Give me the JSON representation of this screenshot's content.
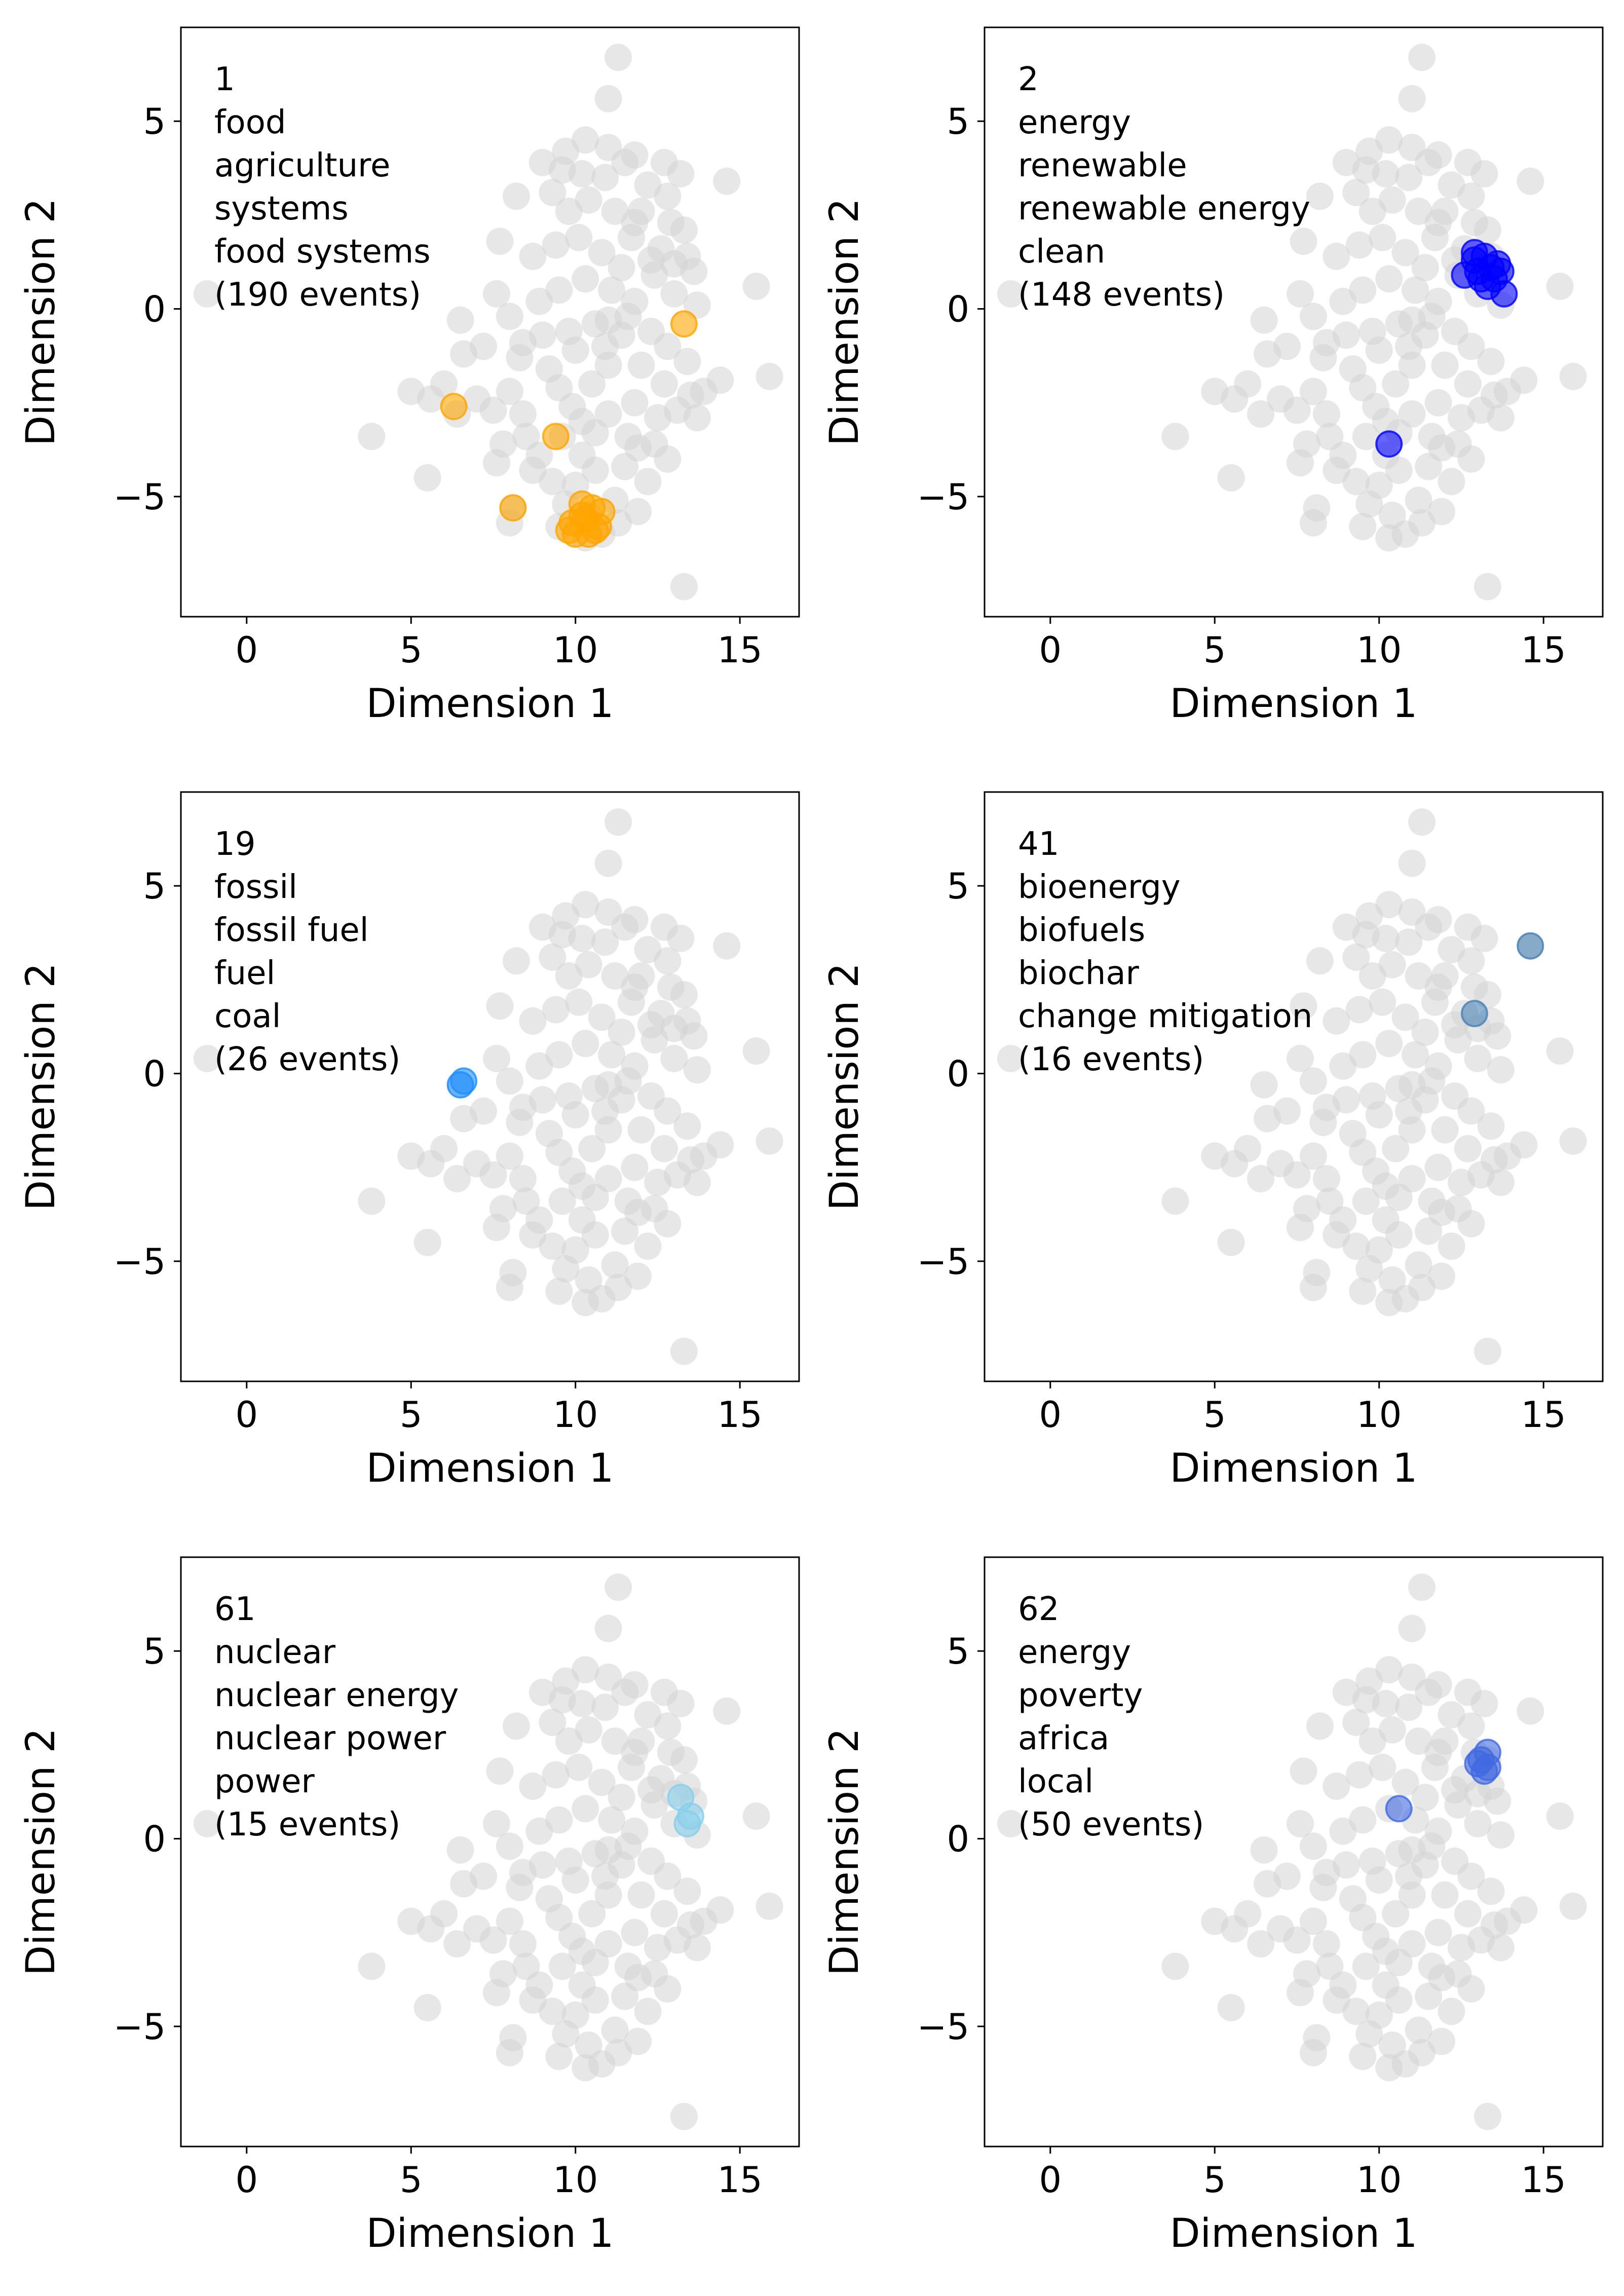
{
  "figure": {
    "background_color": "#d3d3d3",
    "layout": "3 rows x 2 columns"
  },
  "chart_data": [
    {
      "type": "scatter",
      "cluster_id": "1",
      "annotation": [
        "1",
        "food",
        "agriculture",
        "systems",
        "food systems",
        "(190 events)"
      ],
      "highlight_color": "#ffa500",
      "xlabel": "Dimension 1",
      "ylabel": "Dimension 2",
      "xlim": [
        -2.0,
        16.8
      ],
      "ylim": [
        -8.2,
        7.5
      ],
      "xticks": [
        "0",
        "5",
        "10",
        "15"
      ],
      "yticks": [
        "5",
        "0",
        "−5"
      ],
      "highlight_points": [
        [
          13.3,
          -0.4
        ],
        [
          6.3,
          -2.6
        ],
        [
          9.4,
          -3.4
        ],
        [
          8.1,
          -5.3
        ],
        [
          10.2,
          -5.2
        ],
        [
          10.5,
          -5.3
        ],
        [
          10.8,
          -5.4
        ],
        [
          9.9,
          -5.7
        ],
        [
          10.3,
          -5.6
        ],
        [
          10.7,
          -5.8
        ],
        [
          10.0,
          -6.0
        ],
        [
          10.4,
          -6.0
        ],
        [
          10.6,
          -5.9
        ],
        [
          10.2,
          -5.5
        ],
        [
          9.8,
          -5.9
        ]
      ]
    },
    {
      "type": "scatter",
      "cluster_id": "2",
      "annotation": [
        "2",
        "energy",
        "renewable",
        "renewable energy",
        "clean",
        "(148 events)"
      ],
      "highlight_color": "#0000ff",
      "xlabel": "Dimension 1",
      "ylabel": "Dimension 2",
      "xlim": [
        -2.0,
        16.8
      ],
      "ylim": [
        -8.2,
        7.5
      ],
      "xticks": [
        "0",
        "5",
        "10",
        "15"
      ],
      "yticks": [
        "5",
        "0",
        "−5"
      ],
      "highlight_points": [
        [
          12.6,
          0.9
        ],
        [
          12.9,
          1.3
        ],
        [
          13.0,
          1.0
        ],
        [
          13.2,
          1.4
        ],
        [
          13.4,
          1.1
        ],
        [
          13.6,
          1.2
        ],
        [
          13.1,
          0.8
        ],
        [
          13.5,
          0.8
        ],
        [
          13.8,
          0.4
        ],
        [
          13.3,
          0.6
        ],
        [
          12.9,
          1.5
        ],
        [
          13.7,
          1.0
        ],
        [
          10.3,
          -3.6
        ]
      ]
    },
    {
      "type": "scatter",
      "cluster_id": "19",
      "annotation": [
        "19",
        "fossil",
        "fossil fuel",
        "fuel",
        "coal",
        "(26 events)"
      ],
      "highlight_color": "#1e90ff",
      "xlabel": "Dimension 1",
      "ylabel": "Dimension 2",
      "xlim": [
        -2.0,
        16.8
      ],
      "ylim": [
        -8.2,
        7.5
      ],
      "xticks": [
        "0",
        "5",
        "10",
        "15"
      ],
      "yticks": [
        "5",
        "0",
        "−5"
      ],
      "highlight_points": [
        [
          6.5,
          -0.3
        ],
        [
          6.6,
          -0.2
        ]
      ]
    },
    {
      "type": "scatter",
      "cluster_id": "41",
      "annotation": [
        "41",
        "bioenergy",
        "biofuels",
        "biochar",
        "change mitigation",
        "(16 events)"
      ],
      "highlight_color": "#4682b4",
      "xlabel": "Dimension 1",
      "ylabel": "Dimension 2",
      "xlim": [
        -2.0,
        16.8
      ],
      "ylim": [
        -8.2,
        7.5
      ],
      "xticks": [
        "0",
        "5",
        "10",
        "15"
      ],
      "yticks": [
        "5",
        "0",
        "−5"
      ],
      "highlight_points": [
        [
          14.6,
          3.4
        ],
        [
          12.9,
          1.6
        ]
      ]
    },
    {
      "type": "scatter",
      "cluster_id": "61",
      "annotation": [
        "61",
        "nuclear",
        "nuclear energy",
        "nuclear power",
        "power",
        "(15 events)"
      ],
      "highlight_color": "#87ceeb",
      "xlabel": "Dimension 1",
      "ylabel": "Dimension 2",
      "xlim": [
        -2.0,
        16.8
      ],
      "ylim": [
        -8.2,
        7.5
      ],
      "xticks": [
        "0",
        "5",
        "10",
        "15"
      ],
      "yticks": [
        "5",
        "0",
        "−5"
      ],
      "highlight_points": [
        [
          13.2,
          1.1
        ],
        [
          13.4,
          0.4
        ],
        [
          13.5,
          0.6
        ]
      ]
    },
    {
      "type": "scatter",
      "cluster_id": "62",
      "annotation": [
        "62",
        "energy",
        "poverty",
        "africa",
        "local",
        "(50 events)"
      ],
      "highlight_color": "#4169e1",
      "xlabel": "Dimension 1",
      "ylabel": "Dimension 2",
      "xlim": [
        -2.0,
        16.8
      ],
      "ylim": [
        -8.2,
        7.5
      ],
      "xticks": [
        "0",
        "5",
        "10",
        "15"
      ],
      "yticks": [
        "5",
        "0",
        "−5"
      ],
      "highlight_points": [
        [
          13.1,
          2.1
        ],
        [
          13.3,
          2.3
        ],
        [
          13.2,
          1.8
        ],
        [
          13.0,
          2.0
        ],
        [
          13.3,
          1.9
        ],
        [
          10.6,
          0.8
        ]
      ]
    }
  ],
  "background_points": [
    [
      -1.2,
      0.4
    ],
    [
      3.8,
      -3.4
    ],
    [
      5.5,
      -4.5
    ],
    [
      11.3,
      6.7
    ],
    [
      11.0,
      5.6
    ],
    [
      13.3,
      -7.4
    ],
    [
      7.7,
      1.8
    ],
    [
      8.2,
      3.0
    ],
    [
      12.8,
      3.0
    ],
    [
      14.6,
      3.4
    ],
    [
      15.5,
      0.6
    ],
    [
      15.9,
      -1.8
    ],
    [
      14.4,
      -1.9
    ],
    [
      8.4,
      -0.9
    ],
    [
      6.5,
      -0.3
    ],
    [
      5.0,
      -2.2
    ],
    [
      5.6,
      -2.4
    ],
    [
      6.0,
      -2.0
    ],
    [
      7.0,
      -2.4
    ],
    [
      6.4,
      -2.8
    ],
    [
      7.5,
      -2.7
    ],
    [
      8.0,
      -2.2
    ],
    [
      7.8,
      -3.6
    ],
    [
      8.5,
      -3.4
    ],
    [
      8.9,
      -3.9
    ],
    [
      8.1,
      -5.3
    ],
    [
      8.0,
      -5.7
    ],
    [
      9.5,
      -5.8
    ],
    [
      10.3,
      -6.1
    ],
    [
      10.8,
      -6.0
    ],
    [
      10.4,
      -5.5
    ],
    [
      11.2,
      -5.1
    ],
    [
      12.2,
      -4.6
    ],
    [
      11.9,
      -3.7
    ],
    [
      12.5,
      -2.9
    ],
    [
      13.1,
      -2.7
    ],
    [
      13.7,
      -2.9
    ],
    [
      13.5,
      -2.3
    ],
    [
      12.7,
      -2.0
    ],
    [
      11.8,
      -2.5
    ],
    [
      10.2,
      -3.9
    ],
    [
      9.6,
      -3.4
    ],
    [
      9.9,
      -2.6
    ],
    [
      10.5,
      -2.0
    ],
    [
      11.0,
      -1.5
    ],
    [
      9.2,
      -1.6
    ],
    [
      9.8,
      -0.6
    ],
    [
      8.9,
      0.2
    ],
    [
      9.5,
      0.5
    ],
    [
      10.3,
      0.8
    ],
    [
      11.1,
      0.5
    ],
    [
      11.8,
      0.2
    ],
    [
      12.4,
      0.9
    ],
    [
      13.0,
      0.4
    ],
    [
      13.6,
      1.0
    ],
    [
      12.6,
      1.6
    ],
    [
      11.7,
      1.9
    ],
    [
      11.2,
      2.6
    ],
    [
      10.4,
      2.9
    ],
    [
      9.8,
      2.6
    ],
    [
      9.3,
      3.1
    ],
    [
      9.0,
      3.9
    ],
    [
      9.6,
      3.7
    ],
    [
      10.2,
      3.6
    ],
    [
      10.9,
      3.5
    ],
    [
      11.5,
      3.9
    ],
    [
      11.8,
      4.1
    ],
    [
      12.2,
      3.3
    ],
    [
      12.0,
      2.6
    ],
    [
      12.9,
      2.3
    ],
    [
      13.3,
      2.1
    ],
    [
      13.0,
      1.2
    ],
    [
      13.7,
      0.1
    ],
    [
      12.3,
      -0.6
    ],
    [
      11.4,
      -0.7
    ],
    [
      10.6,
      -0.4
    ],
    [
      10.0,
      -1.1
    ],
    [
      9.0,
      -0.7
    ],
    [
      8.7,
      1.4
    ],
    [
      9.4,
      1.7
    ],
    [
      10.1,
      1.9
    ],
    [
      10.8,
      1.5
    ],
    [
      11.4,
      1.1
    ],
    [
      12.0,
      -1.5
    ],
    [
      12.8,
      -1.0
    ],
    [
      13.4,
      -1.4
    ],
    [
      11.0,
      -2.8
    ],
    [
      10.6,
      -3.3
    ],
    [
      11.6,
      -3.4
    ],
    [
      12.4,
      -3.6
    ],
    [
      9.3,
      -4.6
    ],
    [
      10.0,
      -4.7
    ],
    [
      10.6,
      -4.3
    ],
    [
      11.5,
      -4.2
    ],
    [
      8.3,
      -1.3
    ],
    [
      7.2,
      -1.0
    ],
    [
      6.6,
      -1.2
    ],
    [
      7.6,
      0.4
    ],
    [
      8.0,
      -0.2
    ],
    [
      12.7,
      3.9
    ],
    [
      13.2,
      3.6
    ],
    [
      11.0,
      4.3
    ],
    [
      10.3,
      4.5
    ],
    [
      9.7,
      4.2
    ],
    [
      11.9,
      -5.4
    ],
    [
      8.7,
      -4.3
    ],
    [
      7.6,
      -4.1
    ],
    [
      9.7,
      -5.2
    ],
    [
      11.3,
      -5.7
    ],
    [
      12.8,
      -4.0
    ],
    [
      13.9,
      -2.2
    ],
    [
      10.9,
      -1.0
    ],
    [
      11.6,
      -0.2
    ],
    [
      9.5,
      -2.1
    ],
    [
      8.4,
      -2.8
    ],
    [
      13.4,
      1.4
    ],
    [
      12.3,
      1.3
    ],
    [
      11.0,
      -0.3
    ],
    [
      10.2,
      -3.0
    ],
    [
      11.8,
      2.3
    ]
  ]
}
